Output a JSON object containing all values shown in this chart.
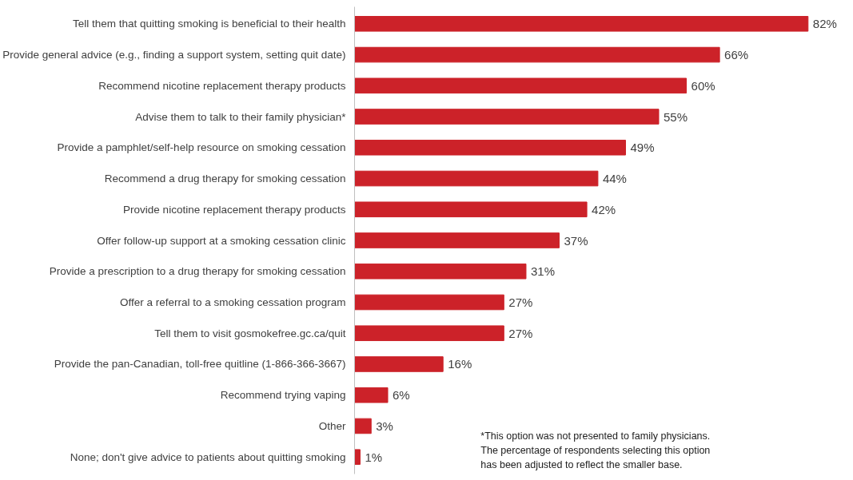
{
  "chart_data": {
    "type": "bar",
    "orientation": "horizontal",
    "categories": [
      "Tell them that quitting smoking is beneficial to their health",
      "Provide general advice (e.g., finding a support system, setting quit date)",
      "Recommend nicotine replacement therapy products",
      "Advise them to talk to their family physician*",
      "Provide a pamphlet/self-help resource on smoking cessation",
      "Recommend a drug therapy for smoking cessation",
      "Provide nicotine replacement therapy products",
      "Offer follow-up support at a smoking cessation clinic",
      "Provide a prescription to a drug therapy for smoking cessation",
      "Offer a referral to a smoking cessation program",
      "Tell them to visit gosmokefree.gc.ca/quit",
      "Provide the pan-Canadian, toll-free quitline (1-866-366-3667)",
      "Recommend trying vaping",
      "Other",
      "None; don't give advice to patients about quitting smoking"
    ],
    "values": [
      82,
      66,
      60,
      55,
      49,
      44,
      42,
      37,
      31,
      27,
      27,
      16,
      6,
      3,
      1
    ],
    "value_labels": [
      "82%",
      "66%",
      "60%",
      "55%",
      "49%",
      "44%",
      "42%",
      "37%",
      "31%",
      "27%",
      "27%",
      "16%",
      "6%",
      "3%",
      "1%"
    ],
    "color": "#cc2229",
    "annotations": [
      "*This option was not presented to family physicians.\nThe percentage of respondents selecting this option\nhas been adjusted to reflect the smaller base."
    ]
  }
}
